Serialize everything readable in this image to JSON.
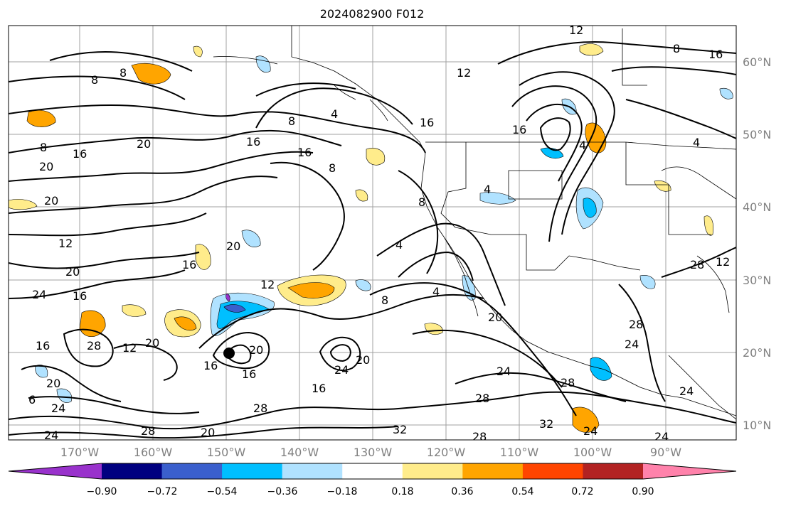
{
  "title": "2024082900 F012",
  "axes": {
    "lat_labels": [
      "60°N",
      "50°N",
      "40°N",
      "30°N",
      "20°N",
      "10°N"
    ],
    "lon_labels": [
      "170°W",
      "160°W",
      "150°W",
      "140°W",
      "130°W",
      "120°W",
      "110°W",
      "100°W",
      "90°W"
    ]
  },
  "colorbar": {
    "colors": [
      "#9932cc",
      "#000080",
      "#3a5fcd",
      "#00bfff",
      "#b0e2ff",
      "#ffffff",
      "#ffec8b",
      "#ffa500",
      "#ff4500",
      "#b22222",
      "#ff82ab"
    ],
    "tick_labels": [
      "−0.90",
      "−0.72",
      "−0.54",
      "−0.36",
      "−0.18",
      "0.18",
      "0.36",
      "0.54",
      "0.72",
      "0.90"
    ]
  },
  "contour_labels": [
    "8",
    "8",
    "8",
    "16",
    "20",
    "20",
    "20",
    "12",
    "20",
    "24",
    "16",
    "16",
    "28",
    "12",
    "20",
    "6",
    "24",
    "24",
    "20",
    "28",
    "20",
    "16",
    "12",
    "16",
    "16",
    "28",
    "20",
    "16",
    "20",
    "24",
    "20",
    "16",
    "12",
    "8",
    "4",
    "8",
    "16",
    "16",
    "4",
    "8",
    "4",
    "4",
    "8",
    "20",
    "28",
    "24",
    "28",
    "32",
    "24",
    "24",
    "28",
    "28",
    "24",
    "32",
    "4",
    "8",
    "16",
    "12",
    "16",
    "4",
    "12",
    "28",
    "24"
  ],
  "features": {
    "storm_marker": "tropical-storm-center-dot"
  }
}
